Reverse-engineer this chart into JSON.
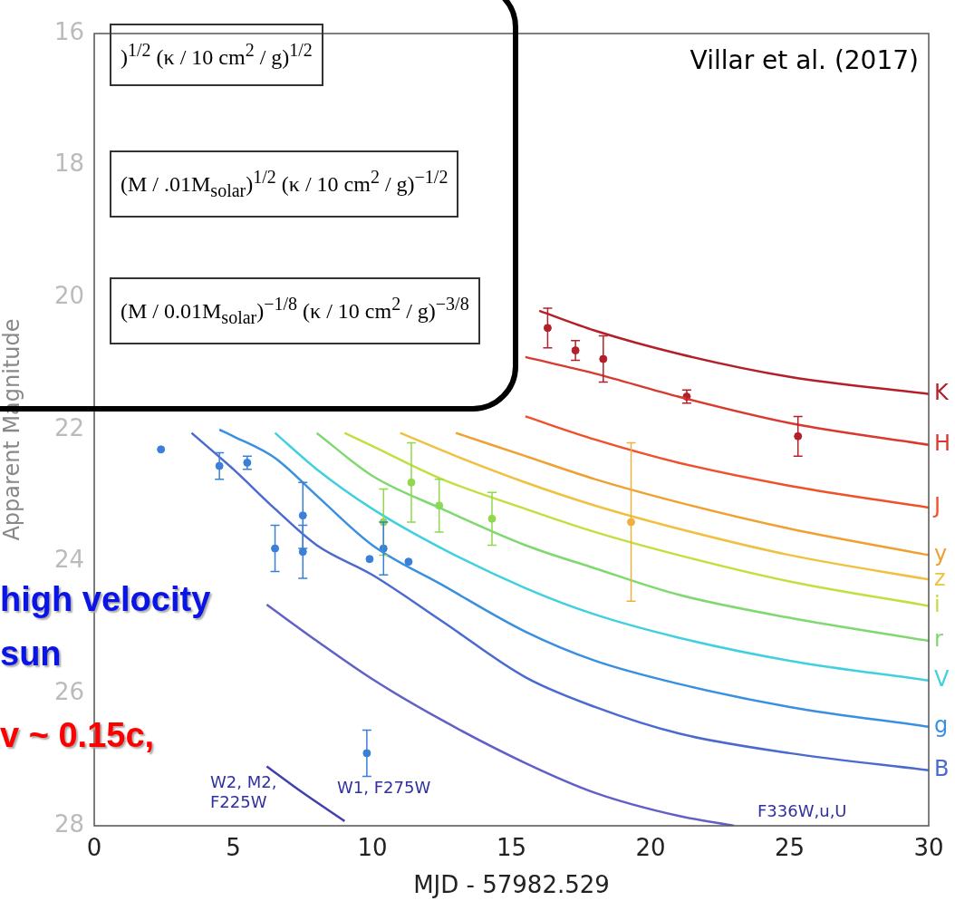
{
  "chart_data": {
    "type": "line",
    "xlabel": "MJD - 57982.529",
    "ylabel": "Apparent Magnitude",
    "xlim": [
      0,
      30
    ],
    "xticks": [
      0,
      5,
      10,
      15,
      20,
      25,
      30
    ],
    "ylim": [
      28,
      16
    ],
    "yticks": [
      16,
      18,
      20,
      22,
      24,
      26,
      28
    ],
    "tick_labels": "xy",
    "marker": "none",
    "series": [
      {
        "name": "K",
        "color": "#b3202a",
        "x": [
          16,
          18,
          21,
          25,
          30
        ],
        "values": [
          20.2,
          20.5,
          20.85,
          21.2,
          21.46
        ]
      },
      {
        "name": "H",
        "color": "#d83a30",
        "x": [
          15.5,
          18,
          21,
          25,
          30
        ],
        "values": [
          20.9,
          21.15,
          21.5,
          21.9,
          22.23
        ]
      },
      {
        "name": "J",
        "color": "#f0502a",
        "x": [
          15.5,
          18,
          21,
          25,
          30
        ],
        "values": [
          21.8,
          22.15,
          22.5,
          22.85,
          23.18
        ]
      },
      {
        "name": "y",
        "color": "#f0a030",
        "x": [
          13,
          15.5,
          18,
          21,
          25,
          30
        ],
        "values": [
          22.05,
          22.4,
          22.75,
          23.1,
          23.5,
          23.9
        ]
      },
      {
        "name": "z",
        "color": "#f0c040",
        "x": [
          11,
          13,
          15.5,
          18,
          21,
          25,
          30
        ],
        "values": [
          22.05,
          22.4,
          22.8,
          23.15,
          23.5,
          23.9,
          24.27
        ]
      },
      {
        "name": "i",
        "color": "#c0e040",
        "x": [
          9,
          10,
          12.5,
          15.5,
          18,
          21,
          25,
          30
        ],
        "values": [
          22.05,
          22.25,
          22.75,
          23.2,
          23.55,
          23.9,
          24.3,
          24.67
        ]
      },
      {
        "name": "r",
        "color": "#80d870",
        "x": [
          8,
          10,
          12.5,
          15.5,
          18,
          21,
          25,
          30
        ],
        "values": [
          22.05,
          22.7,
          23.2,
          23.75,
          24.1,
          24.5,
          24.85,
          25.2
        ]
      },
      {
        "name": "V",
        "color": "#40d0e0",
        "x": [
          6.5,
          8,
          10,
          12.5,
          15.5,
          18,
          21,
          25,
          30
        ],
        "values": [
          22.05,
          22.6,
          23.2,
          23.8,
          24.4,
          24.8,
          25.15,
          25.5,
          25.8
        ]
      },
      {
        "name": "g",
        "color": "#3a90e0",
        "x": [
          4.5,
          5,
          6.5,
          8,
          10,
          12.5,
          15.5,
          18,
          21,
          25,
          30
        ],
        "values": [
          22.0,
          22.1,
          22.43,
          23.0,
          23.75,
          24.35,
          25.06,
          25.5,
          25.85,
          26.2,
          26.5
        ]
      },
      {
        "name": "B",
        "color": "#4a6ad0",
        "x": [
          3.5,
          5,
          6.5,
          8,
          10,
          12.5,
          15.5,
          18,
          21,
          25,
          30
        ],
        "values": [
          22.05,
          22.6,
          23.2,
          23.75,
          24.2,
          24.9,
          25.75,
          26.2,
          26.6,
          26.9,
          27.16
        ]
      },
      {
        "color": "#6060c8",
        "x": [
          6.2,
          8,
          10,
          12.5,
          15.5,
          18,
          21,
          23
        ],
        "values": [
          24.65,
          25.2,
          25.78,
          26.4,
          27.05,
          27.5,
          27.85,
          28.0
        ]
      },
      {
        "color": "#4040b0",
        "x": [
          6.2,
          7.5,
          9
        ],
        "values": [
          27.1,
          27.5,
          27.93
        ]
      },
      {
        "type": "scatter",
        "marker": "circle",
        "color": "#b3202a",
        "x": [
          16.3,
          17.3,
          18.3,
          21.3,
          25.3
        ],
        "values": [
          20.46,
          20.8,
          20.93,
          21.5,
          22.1
        ],
        "errors": [
          0.3,
          0.15,
          0.35,
          0.1,
          0.3
        ]
      },
      {
        "type": "scatter",
        "marker": "circle",
        "color": "#f0b040",
        "x": [
          19.3
        ],
        "values": [
          23.4
        ],
        "errors": [
          1.2
        ]
      },
      {
        "type": "scatter",
        "marker": "circle",
        "color": "#90d850",
        "x": [
          10.4,
          11.4,
          12.4,
          14.3
        ],
        "values": [
          23.4,
          22.8,
          23.15,
          23.35
        ],
        "errors": [
          0.5,
          0.6,
          0.4,
          0.4
        ]
      },
      {
        "type": "scatter",
        "marker": "circle",
        "color": "#3a80d8",
        "x": [
          2.4,
          4.5,
          5.5,
          6.5,
          7.5,
          7.5,
          9.9,
          10.4,
          11.3,
          9.8
        ],
        "values": [
          22.3,
          22.55,
          22.5,
          23.8,
          23.85,
          23.3,
          23.96,
          23.8,
          24.0,
          26.9
        ],
        "errors": [
          null,
          0.2,
          0.1,
          0.35,
          0.4,
          0.5,
          null,
          0.4,
          null,
          0.35
        ]
      }
    ],
    "annotations": [
      "Villar et al. (2017)",
      ")$^{1/2}$ (κ / 10 cm$^{2}$ / g)$^{1/2}$",
      "(M / .01M$_{solar}$)$^{1/2}$ (κ / 10 cm$^{2}$ / g)$^{−1/2}$",
      "(M / 0.01M$_{solar}$)$^{−1/8}$ (κ / 10 cm$^{2}$ / g)$^{−3/8}$",
      "high velocity",
      "sun",
      "v ~ 0.15c,",
      "W2, M2, F225W",
      "W1, F275W",
      "F336W,u,U"
    ]
  }
}
